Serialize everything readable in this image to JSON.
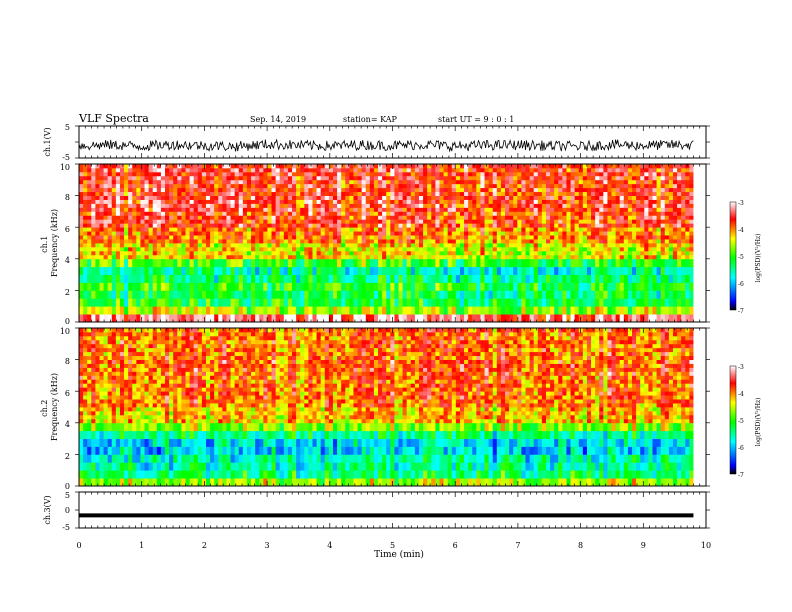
{
  "header": {
    "title": "VLF Spectra",
    "date": "Sep. 14, 2019",
    "station": "station= KAP",
    "start": "start UT =  9 : 0 : 1"
  },
  "colors": {
    "spectrogram_scale": [
      "#000000",
      "#0000ff",
      "#00ffff",
      "#00ff00",
      "#ffff00",
      "#ff0000",
      "#ffffff"
    ],
    "trace": "#000000"
  },
  "chart_data": [
    {
      "type": "line",
      "ylabel": "ch.1(V)",
      "ylim": [
        -5,
        5
      ],
      "yticks": [
        "5",
        "-5"
      ],
      "xlim": [
        0,
        10
      ],
      "note": "noisy waveform trace, roughly centered near -1 V",
      "series": [
        {
          "x": [
            0,
            0.5,
            1,
            1.5,
            2,
            2.5,
            3,
            3.5,
            4,
            4.5,
            5,
            5.5,
            6,
            6.5,
            7,
            7.5,
            8,
            8.5,
            9,
            9.5,
            9.8
          ],
          "values": [
            -1.2,
            -0.9,
            -1.3,
            -0.8,
            -1.1,
            -1.4,
            -0.7,
            -1.0,
            -1.2,
            -0.9,
            -1.1,
            -0.8,
            -1.3,
            -1.0,
            -0.9,
            -1.2,
            -1.4,
            -0.8,
            -1.1,
            -0.9,
            -1.0
          ]
        }
      ]
    },
    {
      "type": "heatmap",
      "ylabel": "ch.1\nFrequency (kHz)",
      "ylim": [
        0,
        10
      ],
      "yticks": [
        "0",
        "2",
        "4",
        "6",
        "8",
        "10"
      ],
      "xlim": [
        0,
        9.8
      ],
      "colorbar": {
        "label": "log(PSD)(V²/Hz)",
        "min": -7,
        "max": -3,
        "ticks": [
          "-3",
          "-4",
          "-5",
          "-6",
          "-7"
        ]
      },
      "bands_kHz": [
        0,
        0.5,
        1,
        1.5,
        2,
        2.5,
        3,
        3.5,
        4,
        5,
        6,
        7,
        8,
        9,
        10
      ],
      "band_log_psd": [
        -3.3,
        -4.6,
        -5.2,
        -5.3,
        -5.1,
        -5.4,
        -5.6,
        -5.0,
        -4.4,
        -4.0,
        -3.7,
        -3.6,
        -3.7,
        -3.6
      ]
    },
    {
      "type": "heatmap",
      "ylabel": "ch.2\nFrequency (kHz)",
      "ylim": [
        0,
        10
      ],
      "yticks": [
        "0",
        "2",
        "4",
        "6",
        "8",
        "10"
      ],
      "xlim": [
        0,
        9.8
      ],
      "colorbar": {
        "label": "log(PSD)(V²/Hz)",
        "min": -7,
        "max": -3,
        "ticks": [
          "-3",
          "-4",
          "-5",
          "-6",
          "-7"
        ]
      },
      "bands_kHz": [
        0,
        0.5,
        1,
        1.5,
        2,
        2.5,
        3,
        3.5,
        4,
        5,
        6,
        7,
        8,
        9,
        10
      ],
      "band_log_psd": [
        -4.6,
        -5.3,
        -5.5,
        -5.6,
        -5.9,
        -5.8,
        -5.4,
        -4.7,
        -4.2,
        -3.9,
        -3.9,
        -3.8,
        -3.9,
        -3.9
      ]
    },
    {
      "type": "line",
      "ylabel": "ch.3(V)",
      "ylim": [
        -5,
        5
      ],
      "yticks": [
        "5",
        "0",
        "-5"
      ],
      "xlim": [
        0,
        10
      ],
      "xlabel": "Time (min)",
      "xticks": [
        "0",
        "1",
        "2",
        "3",
        "4",
        "5",
        "6",
        "7",
        "8",
        "9",
        "10"
      ],
      "series": [
        {
          "x": [
            0,
            9.8
          ],
          "values": [
            -1.5,
            -1.5
          ]
        }
      ]
    }
  ]
}
